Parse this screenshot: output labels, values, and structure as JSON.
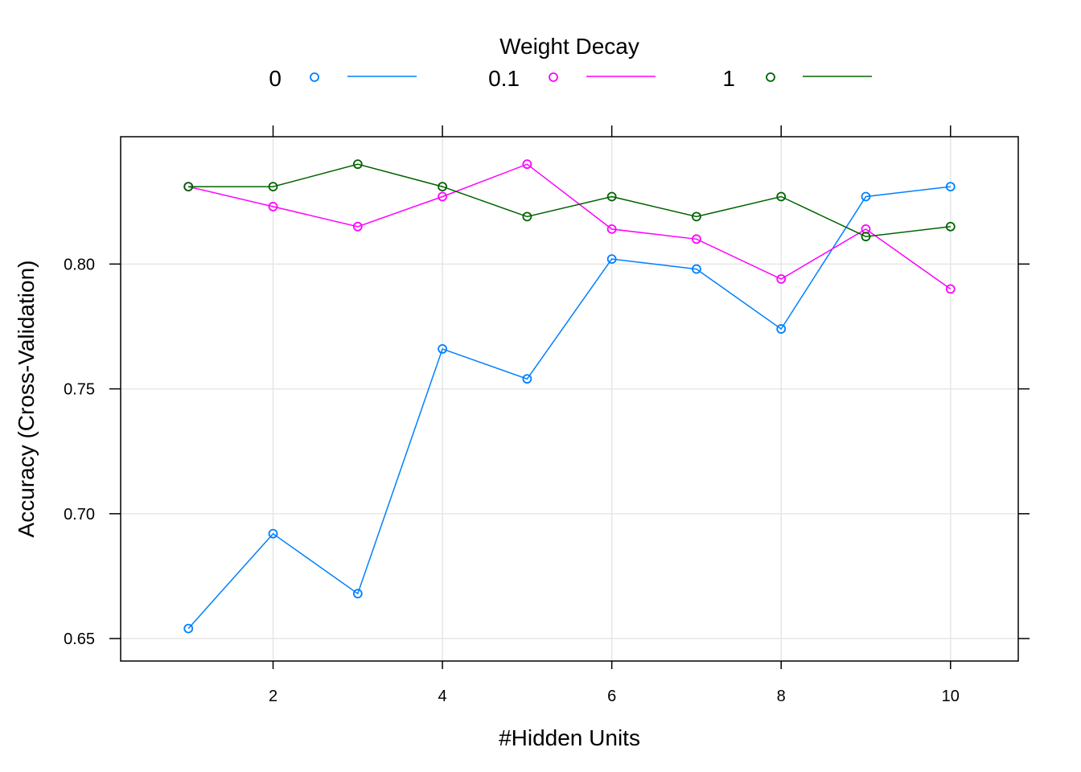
{
  "chart_data": {
    "type": "line",
    "title": "",
    "xlabel": "#Hidden Units",
    "ylabel": "Accuracy (Cross-Validation)",
    "legend_title": "Weight Decay",
    "legend_position": "top",
    "grid": true,
    "xlim": [
      0.2,
      10.8
    ],
    "ylim": [
      0.641,
      0.851
    ],
    "x_ticks": [
      "2",
      "4",
      "6",
      "8",
      "10"
    ],
    "y_ticks": [
      "0.65",
      "0.70",
      "0.75",
      "0.80"
    ],
    "x": [
      1,
      2,
      3,
      4,
      5,
      6,
      7,
      8,
      9,
      10
    ],
    "series": [
      {
        "name": "0",
        "color": "#0080ff",
        "values": [
          0.654,
          0.692,
          0.668,
          0.766,
          0.754,
          0.802,
          0.798,
          0.774,
          0.827,
          0.831
        ]
      },
      {
        "name": "0.1",
        "color": "#ff00ff",
        "values": [
          0.831,
          0.823,
          0.815,
          0.827,
          0.84,
          0.814,
          0.81,
          0.794,
          0.814,
          0.79
        ]
      },
      {
        "name": "1",
        "color": "#006400",
        "values": [
          0.831,
          0.831,
          0.84,
          0.831,
          0.819,
          0.827,
          0.819,
          0.827,
          0.811,
          0.815
        ]
      }
    ]
  }
}
